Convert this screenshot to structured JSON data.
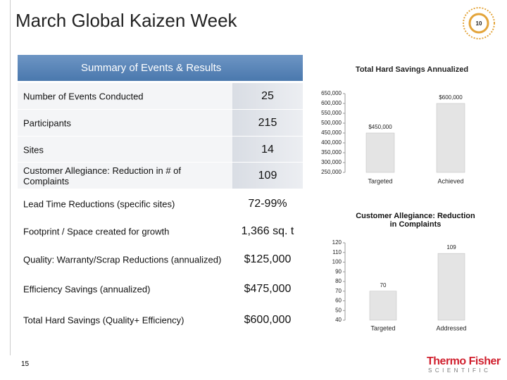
{
  "header": {
    "title": "March Global Kaizen Week"
  },
  "table": {
    "title": "Summary of Events & Results",
    "rows": [
      [
        "Number of Events Conducted",
        "25"
      ],
      [
        "Participants",
        "215"
      ],
      [
        "Sites",
        "14"
      ],
      [
        "Customer Allegiance: Reduction in # of Complaints",
        "109"
      ],
      [
        "Lead Time Reductions  (specific sites)",
        "72-99%"
      ],
      [
        "Footprint / Space created for growth",
        "1,366 sq. t"
      ],
      [
        "Quality: Warranty/Scrap Reductions (annualized)",
        "$125,000"
      ],
      [
        "Efficiency  Savings (annualized)",
        "$475,000"
      ],
      [
        "Total Hard Savings (Quality+ Efficiency)",
        "$600,000"
      ]
    ]
  },
  "chart_data": [
    {
      "type": "bar",
      "title": "Total Hard Savings Annualized",
      "categories": [
        "Targeted",
        "Achieved"
      ],
      "values": [
        450000,
        600000
      ],
      "value_labels": [
        "$450,000",
        "$600,000"
      ],
      "color": "#e4e4e4",
      "ylim": [
        250000,
        650000
      ],
      "yticks": [
        {
          "value": 250000,
          "label": "250,000"
        },
        {
          "value": 300000,
          "label": "300,000"
        },
        {
          "value": 350000,
          "label": "350,000"
        },
        {
          "value": 400000,
          "label": "400,000"
        },
        {
          "value": 450000,
          "label": "450,000"
        },
        {
          "value": 500000,
          "label": "500,000"
        },
        {
          "value": 550000,
          "label": "550,000"
        },
        {
          "value": 600000,
          "label": "600,000"
        },
        {
          "value": 650000,
          "label": "650,000"
        }
      ]
    },
    {
      "type": "bar",
      "title": "Customer Allegiance: Reduction in Complaints",
      "categories": [
        "Targeted",
        "Addressed"
      ],
      "values": [
        70,
        109
      ],
      "color": "#e4e4e4",
      "ylim": [
        40,
        120
      ],
      "yticks": [
        40,
        50,
        60,
        70,
        80,
        90,
        100,
        110,
        120
      ]
    }
  ],
  "footer": {
    "page_number": "15",
    "logo": [
      "Thermo Fisher",
      "SCIENTIFIC"
    ]
  }
}
